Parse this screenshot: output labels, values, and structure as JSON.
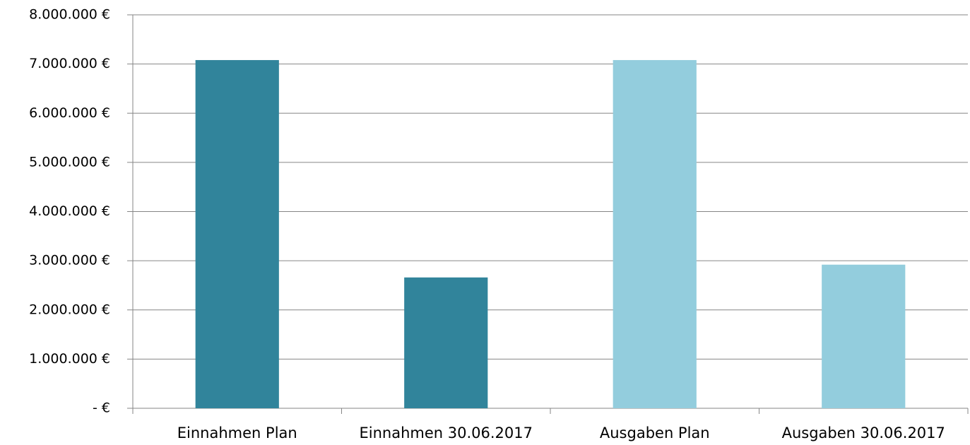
{
  "chart_data": {
    "type": "bar",
    "categories": [
      "Einnahmen Plan",
      "Einnahmen 30.06.2017",
      "Ausgaben Plan",
      "Ausgaben 30.06.2017"
    ],
    "values": [
      7080000,
      2660000,
      7080000,
      2920000
    ],
    "colors": [
      "#31849b",
      "#31849b",
      "#93cddd",
      "#93cddd"
    ],
    "ylim": [
      0,
      8000000
    ],
    "yticks": [
      {
        "value": 0,
        "label": "-  €"
      },
      {
        "value": 1000000,
        "label": "1.000.000 €"
      },
      {
        "value": 2000000,
        "label": "2.000.000 €"
      },
      {
        "value": 3000000,
        "label": "3.000.000 €"
      },
      {
        "value": 4000000,
        "label": "4.000.000 €"
      },
      {
        "value": 5000000,
        "label": "5.000.000 €"
      },
      {
        "value": 6000000,
        "label": "6.000.000 €"
      },
      {
        "value": 7000000,
        "label": "7.000.000 €"
      },
      {
        "value": 8000000,
        "label": "8.000.000 €"
      }
    ],
    "grid": true
  }
}
